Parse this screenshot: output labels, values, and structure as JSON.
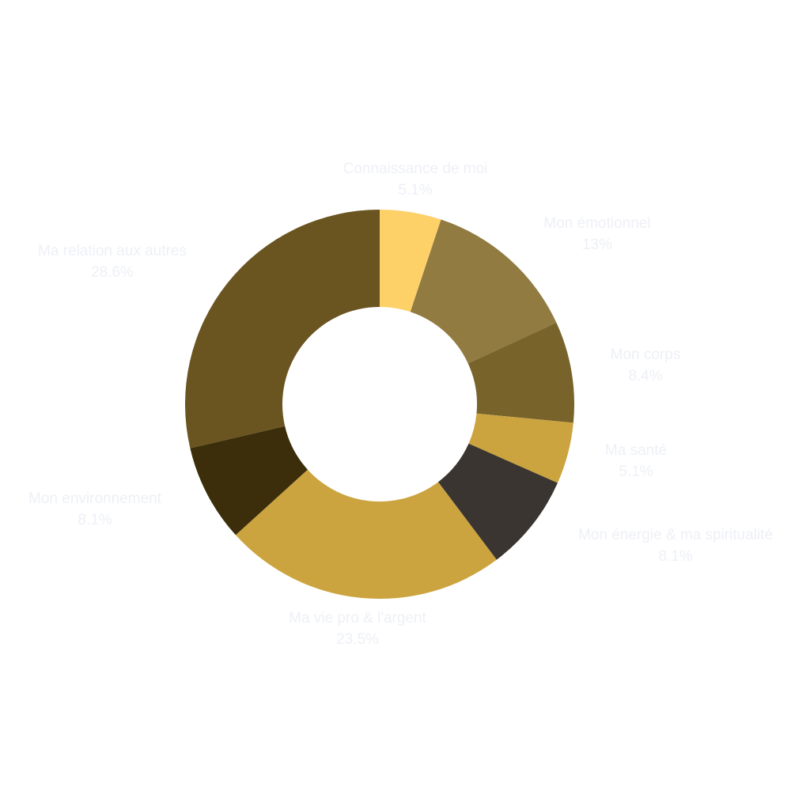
{
  "chart_data": {
    "type": "pie",
    "donut": true,
    "title": "",
    "slices": [
      {
        "label": "Connaissance de moi",
        "value": 5.1,
        "value_label": "5.1%",
        "color": "#fdd168"
      },
      {
        "label": "Mon émotionnel",
        "value": 13,
        "value_label": "13%",
        "color": "#917b41"
      },
      {
        "label": "Mon corps",
        "value": 8.4,
        "value_label": "8.4%",
        "color": "#78632b"
      },
      {
        "label": "Ma santé",
        "value": 5.1,
        "value_label": "5.1%",
        "color": "#cca43f"
      },
      {
        "label": "Mon énergie & ma spiritualité",
        "value": 8.1,
        "value_label": "8.1%",
        "color": "#3a3530"
      },
      {
        "label": "Ma vie pro & l'argent",
        "value": 23.5,
        "value_label": "23.5%",
        "color": "#cca43f"
      },
      {
        "label": "Mon environnement",
        "value": 8.1,
        "value_label": "8.1%",
        "color": "#3c2e0b"
      },
      {
        "label": "Ma relation aux autres",
        "value": 28.6,
        "value_label": "28.6%",
        "color": "#6a5420"
      }
    ],
    "start_angle": "12 o'clock",
    "direction": "clockwise",
    "legend": "none",
    "label_color": "#eef0f6"
  }
}
